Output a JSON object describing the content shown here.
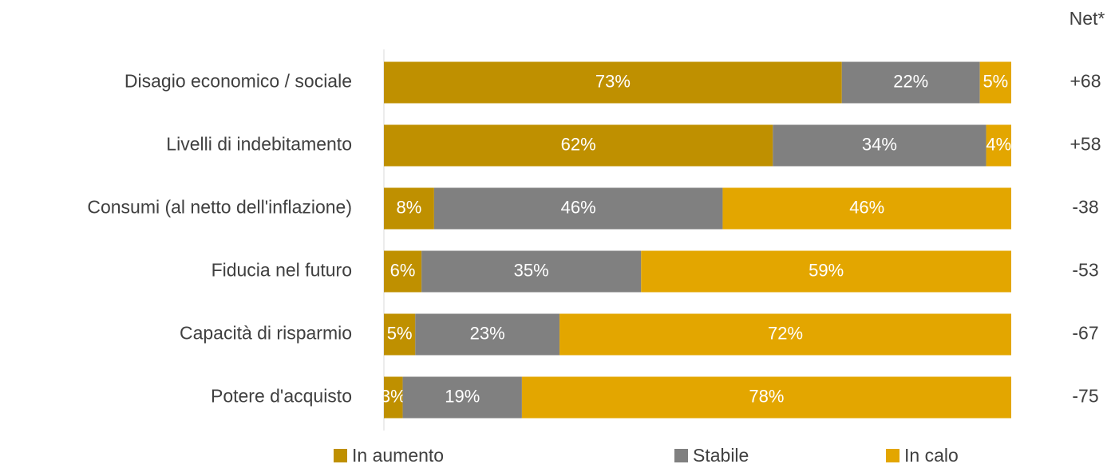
{
  "chart_data": {
    "type": "stacked-barh",
    "categories": [
      "Disagio economico / sociale",
      "Livelli di indebitamento",
      "Consumi (al netto dell'inflazione)",
      "Fiducia nel futuro",
      "Capacità di risparmio",
      "Potere d'acquisto"
    ],
    "series": [
      {
        "name": "In aumento",
        "color": "#bf9000",
        "values": [
          73,
          62,
          8,
          6,
          5,
          3
        ],
        "value_labels": [
          "73%",
          "62%",
          "8%",
          "6%",
          "5%",
          "3%"
        ]
      },
      {
        "name": "Stabile",
        "color": "#808080",
        "values": [
          22,
          34,
          46,
          35,
          23,
          19
        ],
        "value_labels": [
          "22%",
          "34%",
          "46%",
          "35%",
          "23%",
          "19%"
        ]
      },
      {
        "name": "In calo",
        "color": "#e3a600",
        "values": [
          5,
          4,
          46,
          59,
          72,
          78
        ],
        "value_labels": [
          "5%",
          "4%",
          "46%",
          "59%",
          "72%",
          "78%"
        ]
      }
    ],
    "xlim": [
      0,
      100
    ],
    "net": {
      "title": "Net*",
      "values": [
        68,
        58,
        -38,
        -53,
        -67,
        -75
      ],
      "value_labels": [
        "+68",
        "+58",
        "-38",
        "-53",
        "-67",
        "-75"
      ]
    }
  }
}
